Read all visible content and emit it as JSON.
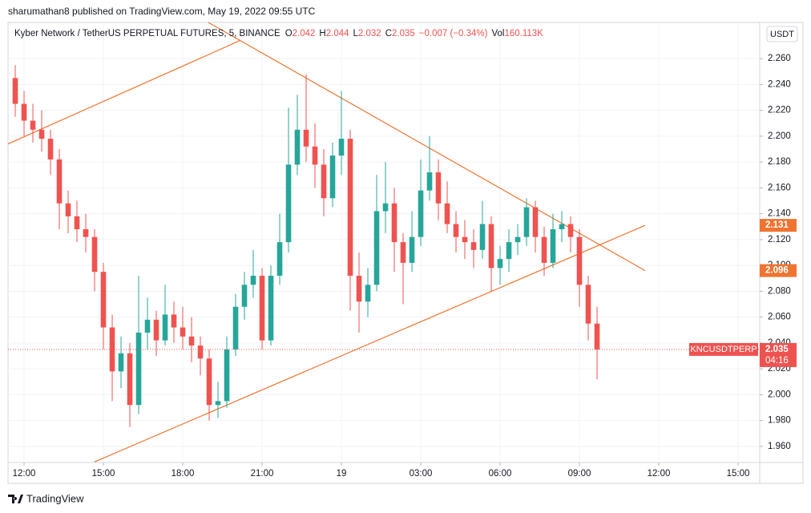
{
  "header": "sharumathan8 published on TradingView.com, May 19, 2022 09:55 UTC",
  "footer_brand": "TradingView",
  "chart_data": {
    "type": "candlestick",
    "title": "Kyber Network / TetherUS PERPETUAL FUTURES, 5, BINANCE",
    "legend": [
      {
        "label": "O",
        "value": 2.042
      },
      {
        "label": "H",
        "value": 2.044
      },
      {
        "label": "L",
        "value": 2.032
      },
      {
        "label": "C",
        "value": 2.035
      }
    ],
    "change": "−0.007 (−0.34%)",
    "volume_label": "Vol",
    "volume": "160.113K",
    "currency": "USDT",
    "symbol": "KNCUSDTPERP",
    "countdown": "04:16",
    "up_color": "#26a69a",
    "down_color": "#ef5350",
    "line_color": "#f07431",
    "grid": true,
    "candles": [
      [
        2.245,
        2.255,
        2.215,
        2.225
      ],
      [
        2.225,
        2.235,
        2.2,
        2.212
      ],
      [
        2.212,
        2.225,
        2.195,
        2.205
      ],
      [
        2.205,
        2.22,
        2.188,
        2.198
      ],
      [
        2.198,
        2.205,
        2.17,
        2.182
      ],
      [
        2.182,
        2.19,
        2.128,
        2.148
      ],
      [
        2.148,
        2.158,
        2.125,
        2.138
      ],
      [
        2.138,
        2.15,
        2.118,
        2.128
      ],
      [
        2.128,
        2.14,
        2.11,
        2.122
      ],
      [
        2.122,
        2.128,
        2.08,
        2.095
      ],
      [
        2.095,
        2.102,
        2.035,
        2.052
      ],
      [
        2.052,
        2.062,
        1.995,
        2.018
      ],
      [
        2.018,
        2.045,
        2.005,
        2.032
      ],
      [
        2.032,
        2.04,
        1.975,
        1.992
      ],
      [
        1.992,
        2.092,
        1.985,
        2.048
      ],
      [
        2.048,
        2.075,
        2.035,
        2.058
      ],
      [
        2.058,
        2.065,
        2.03,
        2.042
      ],
      [
        2.042,
        2.085,
        2.038,
        2.062
      ],
      [
        2.062,
        2.072,
        2.04,
        2.052
      ],
      [
        2.052,
        2.068,
        2.035,
        2.045
      ],
      [
        2.045,
        2.06,
        2.025,
        2.038
      ],
      [
        2.038,
        2.045,
        2.015,
        2.028
      ],
      [
        2.028,
        2.035,
        1.98,
        1.992
      ],
      [
        1.992,
        2.01,
        1.982,
        1.995
      ],
      [
        1.995,
        2.045,
        1.99,
        2.035
      ],
      [
        2.035,
        2.078,
        2.03,
        2.068
      ],
      [
        2.068,
        2.095,
        2.058,
        2.085
      ],
      [
        2.085,
        2.112,
        2.075,
        2.092
      ],
      [
        2.092,
        2.098,
        2.035,
        2.042
      ],
      [
        2.042,
        2.1,
        2.038,
        2.092
      ],
      [
        2.092,
        2.14,
        2.085,
        2.118
      ],
      [
        2.118,
        2.222,
        2.11,
        2.178
      ],
      [
        2.178,
        2.232,
        2.17,
        2.205
      ],
      [
        2.205,
        2.248,
        2.18,
        2.192
      ],
      [
        2.192,
        2.21,
        2.16,
        2.178
      ],
      [
        2.178,
        2.19,
        2.138,
        2.152
      ],
      [
        2.152,
        2.195,
        2.145,
        2.185
      ],
      [
        2.185,
        2.235,
        2.17,
        2.198
      ],
      [
        2.198,
        2.205,
        2.065,
        2.092
      ],
      [
        2.092,
        2.11,
        2.048,
        2.072
      ],
      [
        2.072,
        2.098,
        2.06,
        2.085
      ],
      [
        2.085,
        2.17,
        2.08,
        2.142
      ],
      [
        2.142,
        2.18,
        2.125,
        2.148
      ],
      [
        2.148,
        2.16,
        2.095,
        2.118
      ],
      [
        2.118,
        2.125,
        2.07,
        2.102
      ],
      [
        2.102,
        2.142,
        2.095,
        2.122
      ],
      [
        2.122,
        2.182,
        2.115,
        2.158
      ],
      [
        2.158,
        2.2,
        2.15,
        2.172
      ],
      [
        2.172,
        2.182,
        2.135,
        2.148
      ],
      [
        2.148,
        2.165,
        2.125,
        2.132
      ],
      [
        2.132,
        2.142,
        2.11,
        2.122
      ],
      [
        2.122,
        2.135,
        2.105,
        2.118
      ],
      [
        2.118,
        2.128,
        2.098,
        2.112
      ],
      [
        2.112,
        2.15,
        2.105,
        2.132
      ],
      [
        2.132,
        2.138,
        2.08,
        2.098
      ],
      [
        2.098,
        2.115,
        2.085,
        2.105
      ],
      [
        2.105,
        2.128,
        2.095,
        2.118
      ],
      [
        2.118,
        2.132,
        2.108,
        2.122
      ],
      [
        2.122,
        2.152,
        2.115,
        2.145
      ],
      [
        2.145,
        2.15,
        2.11,
        2.122
      ],
      [
        2.122,
        2.13,
        2.092,
        2.102
      ],
      [
        2.102,
        2.14,
        2.098,
        2.128
      ],
      [
        2.128,
        2.142,
        2.118,
        2.132
      ],
      [
        2.132,
        2.138,
        2.11,
        2.122
      ],
      [
        2.122,
        2.128,
        2.068,
        2.085
      ],
      [
        2.085,
        2.092,
        2.042,
        2.055
      ],
      [
        2.055,
        2.068,
        2.012,
        2.035
      ]
    ],
    "trendlines": [
      {
        "x": [
          21.9,
          71.45
        ],
        "y": [
          2.288,
          2.096
        ]
      },
      {
        "x": [
          9,
          71.45
        ],
        "y": [
          1.948,
          2.131
        ]
      },
      {
        "x": [
          -0.82,
          25.5
        ],
        "y": [
          2.194,
          2.274
        ]
      }
    ],
    "xlim": [
      -0.82,
      84.18
    ],
    "ylim": [
      1.95,
      2.288
    ],
    "xticks": [
      {
        "value": 1,
        "label": "12:00"
      },
      {
        "value": 10,
        "label": "15:00"
      },
      {
        "value": 19,
        "label": "18:00"
      },
      {
        "value": 28,
        "label": "21:00"
      },
      {
        "value": 37,
        "label": "19"
      },
      {
        "value": 46,
        "label": "03:00"
      },
      {
        "value": 55,
        "label": "06:00"
      },
      {
        "value": 64,
        "label": "09:00"
      },
      {
        "value": 73,
        "label": "12:00"
      },
      {
        "value": 82,
        "label": "15:00"
      }
    ],
    "yticks": [
      {
        "value": 1.96,
        "label": "1.960"
      },
      {
        "value": 1.98,
        "label": "1.980"
      },
      {
        "value": 2.0,
        "label": "2.000"
      },
      {
        "value": 2.02,
        "label": "2.020"
      },
      {
        "value": 2.04,
        "label": "2.040"
      },
      {
        "value": 2.06,
        "label": "2.060"
      },
      {
        "value": 2.08,
        "label": "2.080"
      },
      {
        "value": 2.1,
        "label": "2.100"
      },
      {
        "value": 2.12,
        "label": "2.120"
      },
      {
        "value": 2.14,
        "label": "2.140"
      },
      {
        "value": 2.16,
        "label": "2.160"
      },
      {
        "value": 2.18,
        "label": "2.180"
      },
      {
        "value": 2.2,
        "label": "2.200"
      },
      {
        "value": 2.22,
        "label": "2.220"
      },
      {
        "value": 2.24,
        "label": "2.240"
      },
      {
        "value": 2.26,
        "label": "2.260"
      }
    ]
  }
}
